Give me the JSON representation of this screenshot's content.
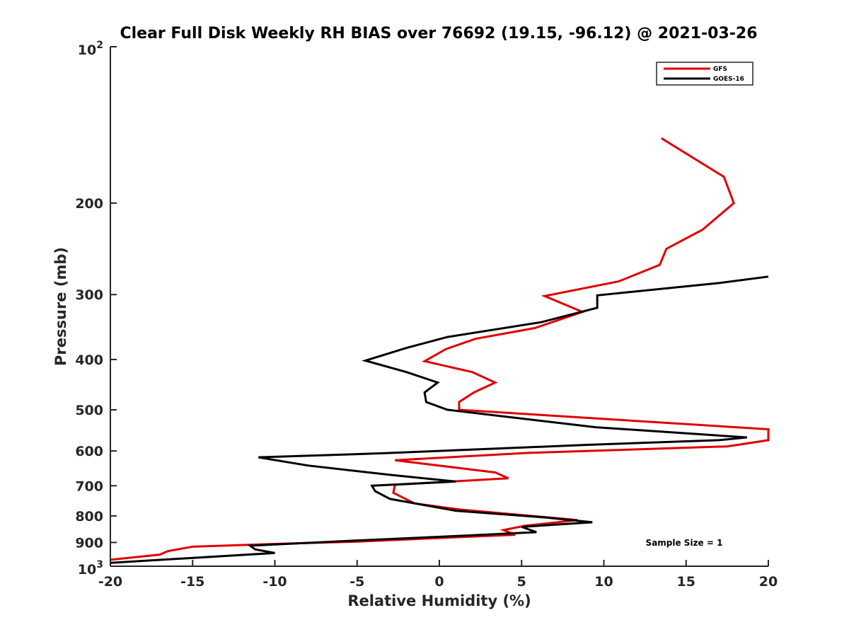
{
  "chart_data": {
    "type": "line",
    "title": "Clear Full Disk Weekly RH BIAS over 76692 (19.15, -96.12) @ 2021-03-26",
    "xlabel": "Relative Humidity (%)",
    "ylabel": "Pressure (mb)",
    "xlim": [
      -20,
      20
    ],
    "ylim": [
      100,
      1000
    ],
    "yscale": "log",
    "y_reversed": true,
    "x_ticks": [
      -20,
      -15,
      -10,
      -5,
      0,
      5,
      10,
      15,
      20
    ],
    "x_tick_labels": [
      "-20",
      "-15",
      "-10",
      "-5",
      "0",
      "5",
      "10",
      "15",
      "20"
    ],
    "y_ticks": [
      200,
      300,
      400,
      500,
      600,
      700,
      800,
      900
    ],
    "y_tick_labels": [
      "200",
      "300",
      "400",
      "500",
      "600",
      "700",
      "800",
      "900"
    ],
    "y_top_label": {
      "base": "10",
      "exp": "2"
    },
    "y_bottom_label": {
      "base": "10",
      "exp": "3"
    },
    "legend_position": "top-right",
    "annotation": "Sample Size = 1",
    "series": [
      {
        "name": "GFS",
        "color": "#e00000",
        "points": [
          [
            13.5,
            150
          ],
          [
            17.3,
            178
          ],
          [
            17.9,
            200
          ],
          [
            16.0,
            225
          ],
          [
            13.8,
            245
          ],
          [
            13.4,
            263
          ],
          [
            10.9,
            283
          ],
          [
            6.4,
            302
          ],
          [
            8.7,
            324
          ],
          [
            5.8,
            348
          ],
          [
            2.2,
            365
          ],
          [
            0.4,
            382
          ],
          [
            -0.9,
            403
          ],
          [
            2.0,
            423
          ],
          [
            3.4,
            443
          ],
          [
            2.1,
            463
          ],
          [
            1.2,
            483
          ],
          [
            1.2,
            500
          ],
          [
            20.0,
            545
          ],
          [
            20.0,
            572
          ],
          [
            17.5,
            588
          ],
          [
            5.5,
            605
          ],
          [
            -2.7,
            625
          ],
          [
            3.4,
            660
          ],
          [
            4.2,
            677
          ],
          [
            -2.7,
            697
          ],
          [
            -2.8,
            722
          ],
          [
            -1.5,
            757
          ],
          [
            1.3,
            778
          ],
          [
            8.4,
            815
          ],
          [
            5.2,
            836
          ],
          [
            3.9,
            852
          ],
          [
            4.6,
            870
          ],
          [
            -1.0,
            885
          ],
          [
            -5.0,
            897
          ],
          [
            -10.0,
            906
          ],
          [
            -15.0,
            917
          ],
          [
            -16.5,
            935
          ],
          [
            -17.0,
            950
          ],
          [
            -20.0,
            972
          ]
        ]
      },
      {
        "name": "GOES-16",
        "color": "#000000",
        "points": [
          [
            20.0,
            277
          ],
          [
            17.0,
            285
          ],
          [
            9.6,
            301
          ],
          [
            9.6,
            318
          ],
          [
            6.2,
            339
          ],
          [
            0.5,
            362
          ],
          [
            -2.0,
            380
          ],
          [
            -4.5,
            402
          ],
          [
            -2.0,
            423
          ],
          [
            -0.1,
            443
          ],
          [
            -0.9,
            463
          ],
          [
            -0.8,
            483
          ],
          [
            0.5,
            500
          ],
          [
            9.5,
            540
          ],
          [
            18.7,
            565
          ],
          [
            17.0,
            572
          ],
          [
            9.0,
            584
          ],
          [
            -3.3,
            606
          ],
          [
            -11.0,
            617
          ],
          [
            -8.0,
            640
          ],
          [
            -3.0,
            667
          ],
          [
            1.0,
            687
          ],
          [
            -4.1,
            700
          ],
          [
            -3.9,
            717
          ],
          [
            -3.0,
            742
          ],
          [
            1.0,
            782
          ],
          [
            6.5,
            806
          ],
          [
            9.3,
            823
          ],
          [
            5.0,
            840
          ],
          [
            5.9,
            860
          ],
          [
            1.0,
            875
          ],
          [
            -5.0,
            892
          ],
          [
            -11.5,
            913
          ],
          [
            -11.2,
            928
          ],
          [
            -10.0,
            943
          ],
          [
            -20.0,
            985
          ]
        ]
      }
    ]
  }
}
